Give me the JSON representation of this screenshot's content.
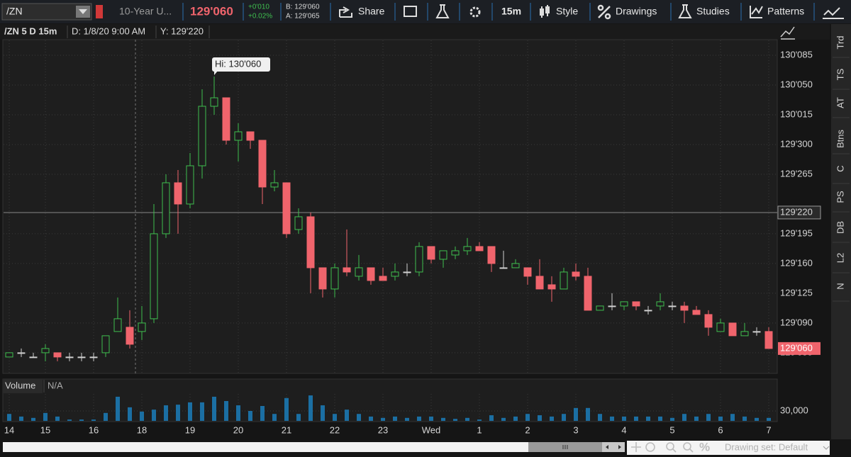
{
  "toolbar": {
    "symbol": "/ZN",
    "description": "10-Year U...",
    "change": "+0'010",
    "change_pct": "+0.02%",
    "bid": "B: 129'060",
    "ask": "A: 129'065",
    "buttons": [
      "Share",
      "15m",
      "Style",
      "Drawings",
      "Studies",
      "Patterns"
    ]
  },
  "chart_header": {
    "title": "/ZN 5 D 15m",
    "date": "D: 1/8/20 9:00 AM",
    "y": "Y: 129'220"
  },
  "sidebar": [
    "Trd",
    "TS",
    "AT",
    "Btns",
    "C",
    "PS",
    "DB",
    "L2",
    "N"
  ],
  "footer": {
    "drawing_set": "Drawing set: Default"
  },
  "chart_data": {
    "type": "candlestick",
    "categories": [
      "14",
      null,
      null,
      "15",
      null,
      null,
      null,
      "16",
      null,
      null,
      null,
      "18",
      null,
      null,
      null,
      "19",
      null,
      null,
      null,
      "20",
      null,
      null,
      null,
      "21",
      null,
      null,
      null,
      "22",
      null,
      null,
      null,
      "23",
      null,
      null,
      null,
      "Wed",
      null,
      null,
      null,
      "1",
      null,
      null,
      null,
      "2",
      null,
      null,
      null,
      "3",
      null,
      null,
      null,
      "4",
      null,
      null,
      null,
      "5",
      null,
      null,
      null,
      "6",
      null,
      null,
      null,
      "7"
    ],
    "open": [
      129.15625,
      129.171875,
      129.15625,
      129.171875,
      129.171875,
      129.15625,
      129.15625,
      129.15625,
      129.171875,
      129.25,
      129.265625,
      129.25,
      129.296875,
      129.609375,
      129.796875,
      129.71875,
      129.859375,
      130.078125,
      130.109375,
      129.953125,
      129.984375,
      129.953125,
      129.78125,
      129.796875,
      129.625,
      129.671875,
      129.484375,
      129.40625,
      129.484375,
      129.453125,
      129.484375,
      129.453125,
      129.453125,
      129.46875,
      129.46875,
      129.5625,
      129.515625,
      129.53125,
      129.546875,
      129.5625,
      129.5625,
      129.484375,
      129.484375,
      129.484375,
      129.453125,
      129.421875,
      129.40625,
      129.46875,
      129.453125,
      129.328125,
      129.34375,
      129.34375,
      129.359375,
      129.328125,
      129.34375,
      129.34375,
      129.34375,
      129.328125,
      129.3125,
      129.25,
      129.28125,
      129.234375,
      129.25,
      129.25
    ],
    "high": [
      129.171875,
      129.1875,
      129.171875,
      129.203125,
      129.171875,
      129.171875,
      129.171875,
      129.171875,
      129.234375,
      129.375,
      129.328125,
      129.34375,
      129.71875,
      129.828125,
      129.84375,
      129.90625,
      130.140625,
      130.1875,
      130.109375,
      130.015625,
      129.984375,
      129.953125,
      129.84375,
      129.796875,
      129.703125,
      129.6875,
      129.484375,
      129.5,
      129.625,
      129.53125,
      129.484375,
      129.484375,
      129.5,
      129.5,
      129.578125,
      129.5625,
      129.546875,
      129.5625,
      129.59375,
      129.578125,
      129.5625,
      129.546875,
      129.515625,
      129.484375,
      129.515625,
      129.453125,
      129.484375,
      129.5,
      129.484375,
      129.34375,
      129.390625,
      129.359375,
      129.359375,
      129.34375,
      129.390625,
      129.359375,
      129.359375,
      129.34375,
      129.328125,
      129.296875,
      129.28125,
      129.28125,
      129.265625,
      129.265625
    ],
    "low": [
      129.15625,
      129.15625,
      129.15625,
      129.140625,
      129.140625,
      129.140625,
      129.140625,
      129.140625,
      129.15625,
      129.25,
      129.1875,
      129.21875,
      129.28125,
      129.59375,
      129.609375,
      129.703125,
      129.8125,
      130.046875,
      129.9375,
      129.875,
      129.921875,
      129.71875,
      129.765625,
      129.59375,
      129.609375,
      129.390625,
      129.375,
      129.375,
      129.453125,
      129.4375,
      129.421875,
      129.4375,
      129.4375,
      129.453125,
      129.453125,
      129.5,
      129.484375,
      129.515625,
      129.53125,
      129.546875,
      129.46875,
      129.484375,
      129.484375,
      129.421875,
      129.40625,
      129.359375,
      129.40625,
      129.4375,
      129.328125,
      129.328125,
      129.328125,
      129.328125,
      129.328125,
      129.3125,
      129.328125,
      129.328125,
      129.28125,
      129.3125,
      129.234375,
      129.25,
      129.234375,
      129.234375,
      129.234375,
      129.1875
    ],
    "close": [
      129.171875,
      129.171875,
      129.15625,
      129.1875,
      129.15625,
      129.15625,
      129.15625,
      129.15625,
      129.234375,
      129.296875,
      129.203125,
      129.28125,
      129.609375,
      129.796875,
      129.71875,
      129.859375,
      130.078125,
      130.109375,
      129.953125,
      129.984375,
      129.953125,
      129.78125,
      129.796875,
      129.609375,
      129.671875,
      129.484375,
      129.40625,
      129.484375,
      129.46875,
      129.484375,
      129.4375,
      129.4375,
      129.46875,
      129.46875,
      129.5625,
      129.515625,
      129.546875,
      129.546875,
      129.5625,
      129.546875,
      129.5,
      129.484375,
      129.5,
      129.453125,
      129.40625,
      129.40625,
      129.46875,
      129.453125,
      129.328125,
      129.34375,
      129.34375,
      129.359375,
      129.34375,
      129.328125,
      129.359375,
      129.34375,
      129.328125,
      129.3125,
      129.265625,
      129.28125,
      129.234375,
      129.25,
      129.25,
      129.1875
    ],
    "up_color": "#3fbf4f",
    "down_color": "#f0646c",
    "doji_color": "#d0d0d0",
    "ylim": [
      129.096,
      130.323
    ],
    "yticks": [
      {
        "value": 130.265625,
        "label": "130'085"
      },
      {
        "value": 130.15625,
        "label": "130'050"
      },
      {
        "value": 130.046875,
        "label": "130'015"
      },
      {
        "value": 129.9375,
        "label": "129'300"
      },
      {
        "value": 129.828125,
        "label": "129'265"
      },
      {
        "value": 129.609375,
        "label": "129'195"
      },
      {
        "value": 129.5,
        "label": "129'160"
      },
      {
        "value": 129.390625,
        "label": "129'125"
      },
      {
        "value": 129.28125,
        "label": "129'090"
      },
      {
        "value": 129.171875,
        "label": "129'055"
      }
    ],
    "grid": true,
    "hi_annotation": "Hi: 130'060",
    "crosshair": {
      "value": 129.6875,
      "label": "129'220"
    },
    "last_price": {
      "value": 129.1875,
      "label": "129'060"
    },
    "volume": {
      "name": "Volume",
      "status": "N/A",
      "color": "#1b6fa3",
      "ylim": [
        0,
        80000
      ],
      "yticks": [
        {
          "value": 30000,
          "label": "30,000"
        }
      ],
      "values": [
        21000,
        13000,
        9000,
        24000,
        13000,
        4000,
        4000,
        4000,
        24000,
        73000,
        41000,
        28000,
        34000,
        47000,
        49000,
        56000,
        56000,
        73000,
        60000,
        47000,
        30000,
        45000,
        21000,
        69000,
        21000,
        77000,
        47000,
        21000,
        34000,
        21000,
        13000,
        9000,
        13000,
        9000,
        13000,
        13000,
        9000,
        6000,
        9000,
        4000,
        17000,
        9000,
        13000,
        21000,
        17000,
        13000,
        21000,
        39000,
        39000,
        21000,
        13000,
        13000,
        13000,
        13000,
        13000,
        9000,
        21000,
        13000,
        21000,
        13000,
        21000,
        13000,
        9000,
        9000
      ]
    }
  }
}
